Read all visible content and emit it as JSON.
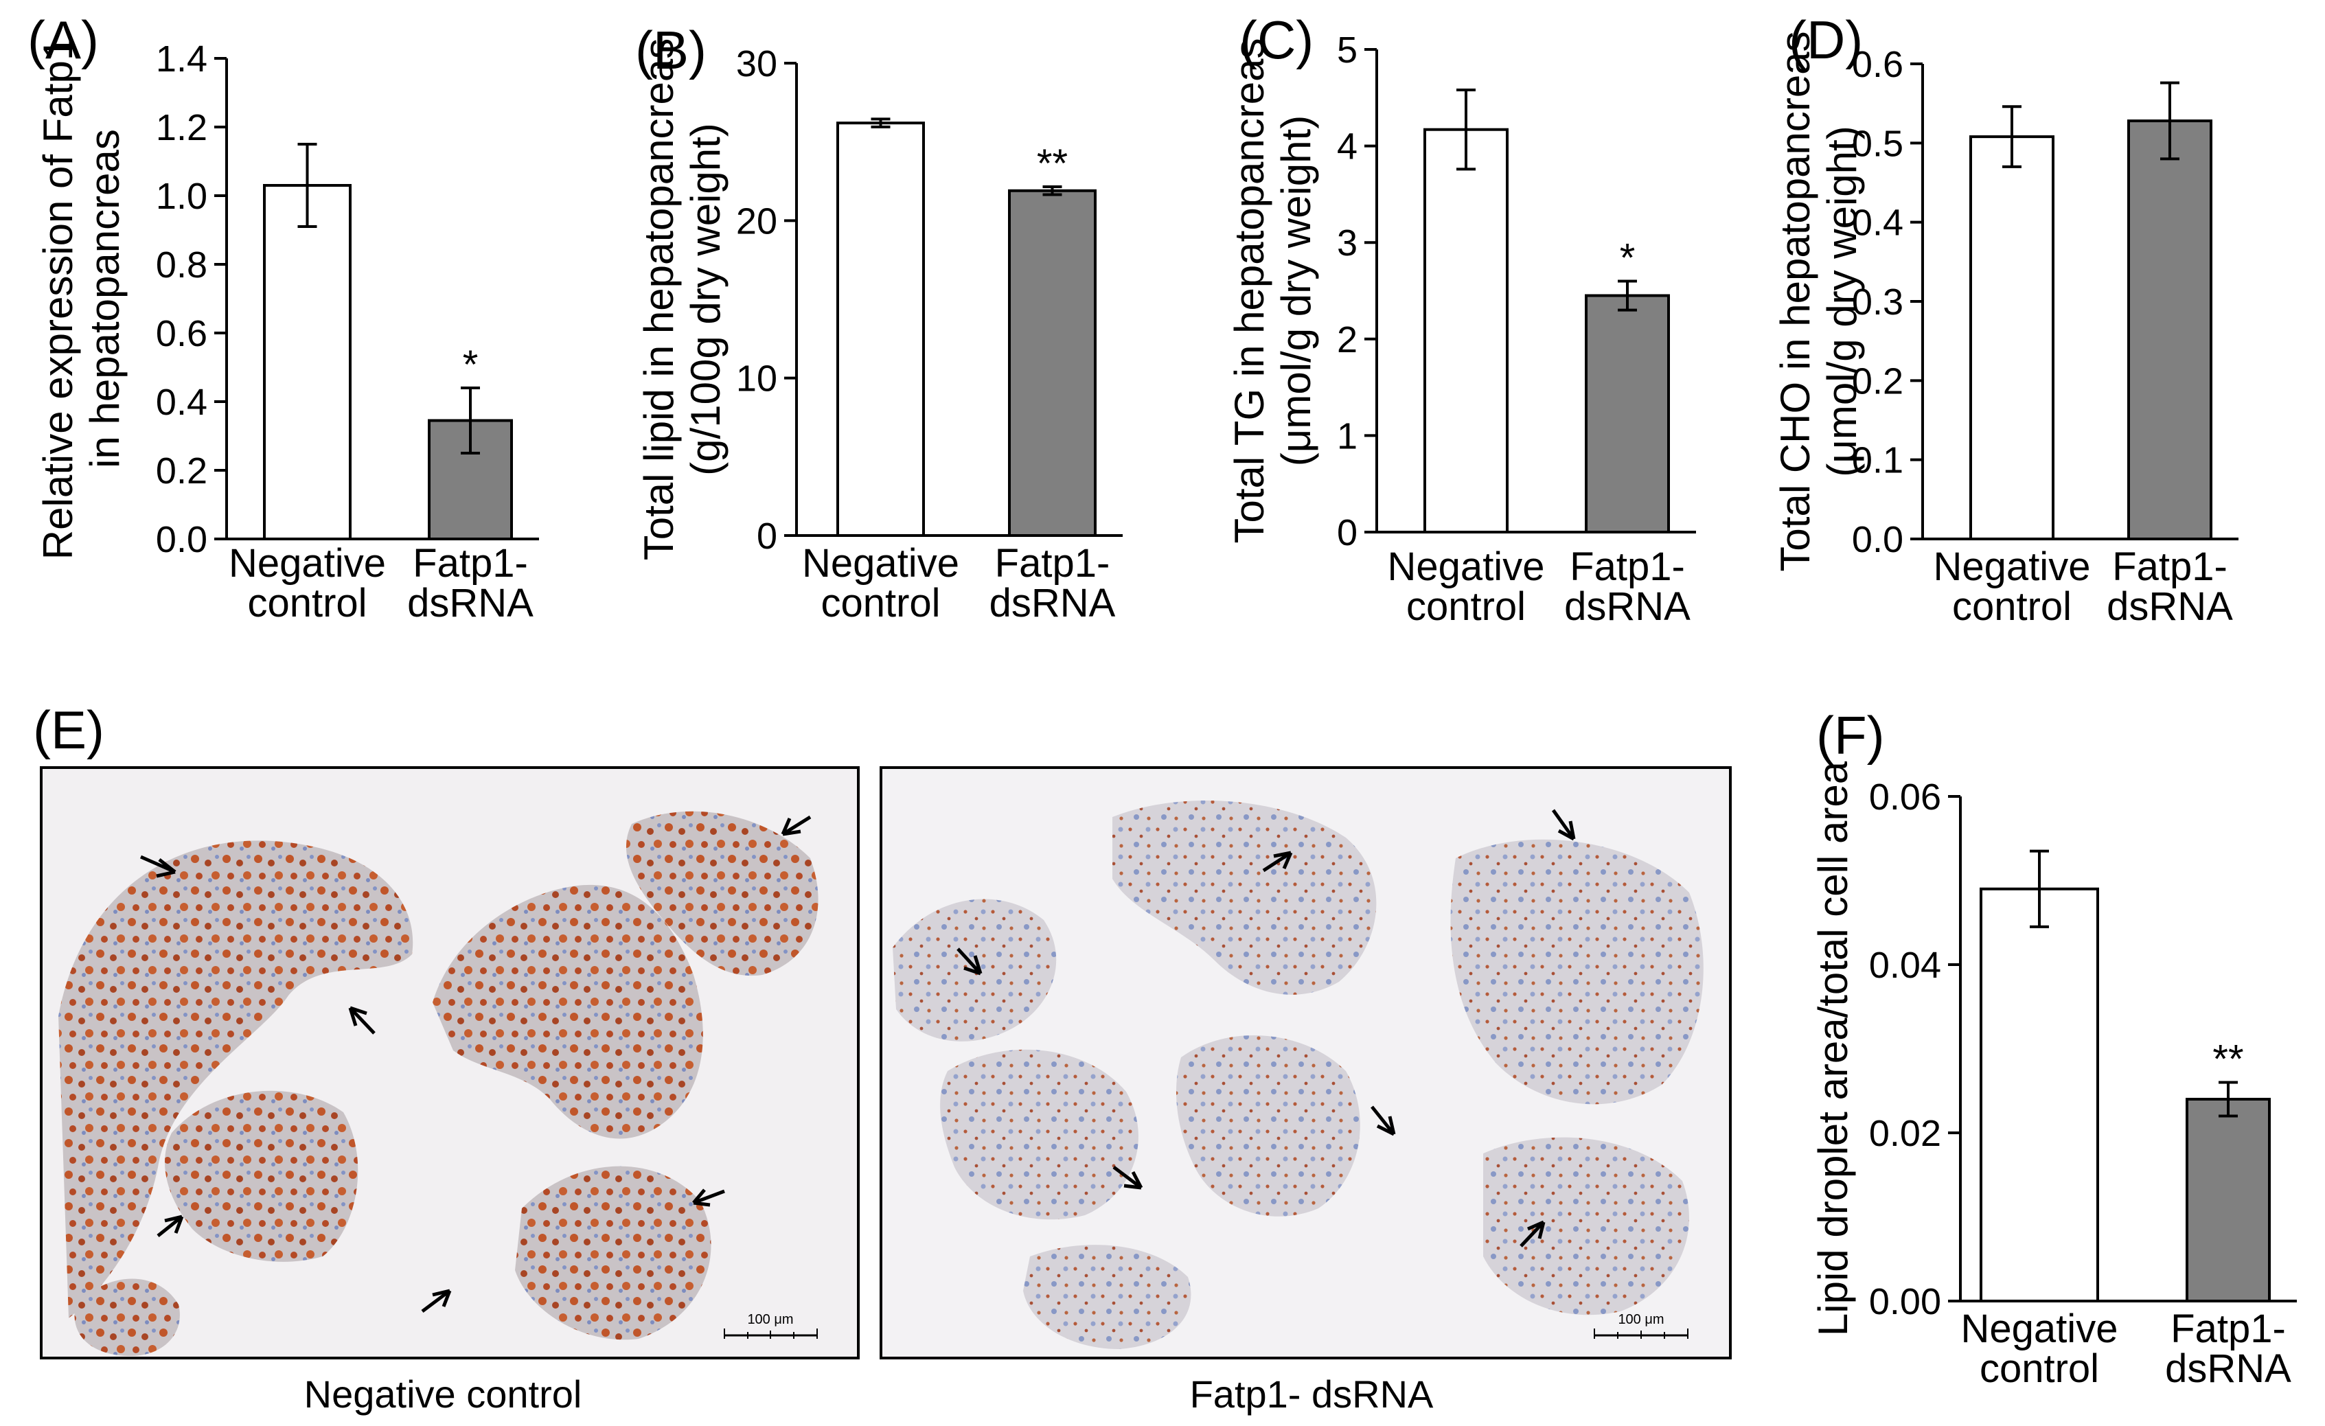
{
  "colors": {
    "control_bar": "#ffffff",
    "treatment_bar": "#808080",
    "outline": "#000000"
  },
  "chart_data": [
    {
      "panel": "(A)",
      "type": "bar",
      "ylabel": [
        "Relative expression of Fatp1",
        "in hepatopancreas"
      ],
      "ylim": [
        0,
        1.4
      ],
      "yticks": [
        "0.0",
        "0.2",
        "0.4",
        "0.6",
        "0.8",
        "1.0",
        "1.2",
        "1.4"
      ],
      "categories": [
        [
          "Negative",
          "control"
        ],
        [
          "Fatp1-",
          "dsRNA"
        ]
      ],
      "values": [
        1.03,
        0.345
      ],
      "errors": [
        0.12,
        0.095
      ],
      "significance": [
        "",
        "*"
      ]
    },
    {
      "panel": "(B)",
      "type": "bar",
      "ylabel": [
        "Total lipid in hepatopancreas",
        "(g/100g dry weight)"
      ],
      "ylim": [
        0,
        30
      ],
      "yticks": [
        "0",
        "10",
        "20",
        "30"
      ],
      "categories": [
        [
          "Negative",
          "control"
        ],
        [
          "Fatp1-",
          "dsRNA"
        ]
      ],
      "values": [
        26.2,
        21.9
      ],
      "errors": [
        0.25,
        0.25
      ],
      "significance": [
        "",
        "**"
      ]
    },
    {
      "panel": "(C)",
      "type": "bar",
      "ylabel": [
        "Total TG in hepatopancreas",
        "(μmol/g dry weight)"
      ],
      "ylim": [
        0,
        5
      ],
      "yticks": [
        "0",
        "1",
        "2",
        "3",
        "4",
        "5"
      ],
      "categories": [
        [
          "Negative",
          "control"
        ],
        [
          "Fatp1-",
          "dsRNA"
        ]
      ],
      "values": [
        4.17,
        2.45
      ],
      "errors": [
        0.41,
        0.15
      ],
      "significance": [
        "",
        "*"
      ]
    },
    {
      "panel": "(D)",
      "type": "bar",
      "ylabel": [
        "Total CHO in hepatopancreas",
        "(μmol/g dry weight)"
      ],
      "ylim": [
        0,
        0.6
      ],
      "yticks": [
        "0.0",
        "0.1",
        "0.2",
        "0.3",
        "0.4",
        "0.5",
        "0.6"
      ],
      "categories": [
        [
          "Negative",
          "control"
        ],
        [
          "Fatp1-",
          "dsRNA"
        ]
      ],
      "values": [
        0.508,
        0.528
      ],
      "errors": [
        0.038,
        0.048
      ],
      "significance": [
        "",
        ""
      ]
    },
    {
      "panel": "(F)",
      "type": "bar",
      "ylabel": [
        "Lipid droplet area/total cell area"
      ],
      "ylim": [
        0,
        0.06
      ],
      "yticks": [
        "0.00",
        "0.02",
        "0.04",
        "0.06"
      ],
      "categories": [
        [
          "Negative",
          "control"
        ],
        [
          "Fatp1-",
          "dsRNA"
        ]
      ],
      "values": [
        0.049,
        0.024
      ],
      "errors": [
        0.0045,
        0.002
      ],
      "significance": [
        "",
        "**"
      ]
    }
  ],
  "micrographs": {
    "panel": "(E)",
    "images": [
      {
        "caption": "Negative control",
        "scale_bar": "100 μm"
      },
      {
        "caption": "Fatp1- dsRNA",
        "scale_bar": "100 μm"
      }
    ]
  }
}
